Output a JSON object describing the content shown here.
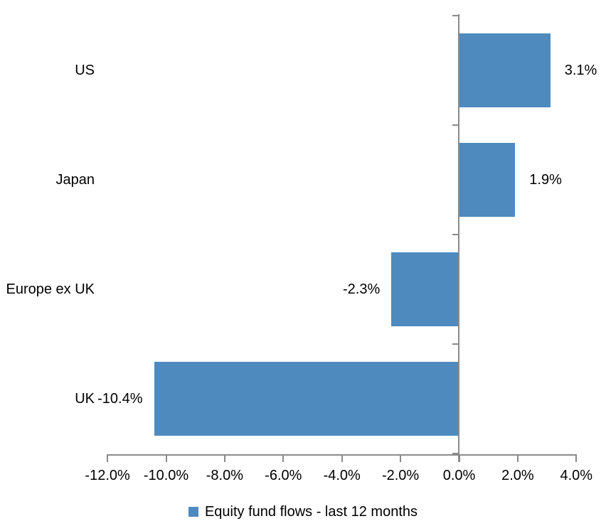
{
  "chart_data": {
    "type": "bar",
    "orientation": "horizontal",
    "title": "",
    "xlabel": "",
    "ylabel": "",
    "categories": [
      "US",
      "Japan",
      "Europe ex UK",
      "UK"
    ],
    "values": [
      3.1,
      1.9,
      -2.3,
      -10.4
    ],
    "data_labels": [
      "3.1%",
      "1.9%",
      "-2.3%",
      "-10.4%"
    ],
    "x_ticks": [
      "-12.0%",
      "-10.0%",
      "-8.0%",
      "-6.0%",
      "-4.0%",
      "-2.0%",
      "0.0%",
      "2.0%",
      "4.0%"
    ],
    "x_tick_values": [
      -12,
      -10,
      -8,
      -6,
      -4,
      -2,
      0,
      2,
      4
    ],
    "xlim": [
      -12,
      4
    ],
    "grid": false,
    "legend": "Equity fund flows - last 12 months",
    "legend_position": "bottom",
    "bar_color": "#4E8ABE",
    "axis_color": "#8A8A8A",
    "text_color": "#000000",
    "background_color": "#FFFFFF"
  }
}
